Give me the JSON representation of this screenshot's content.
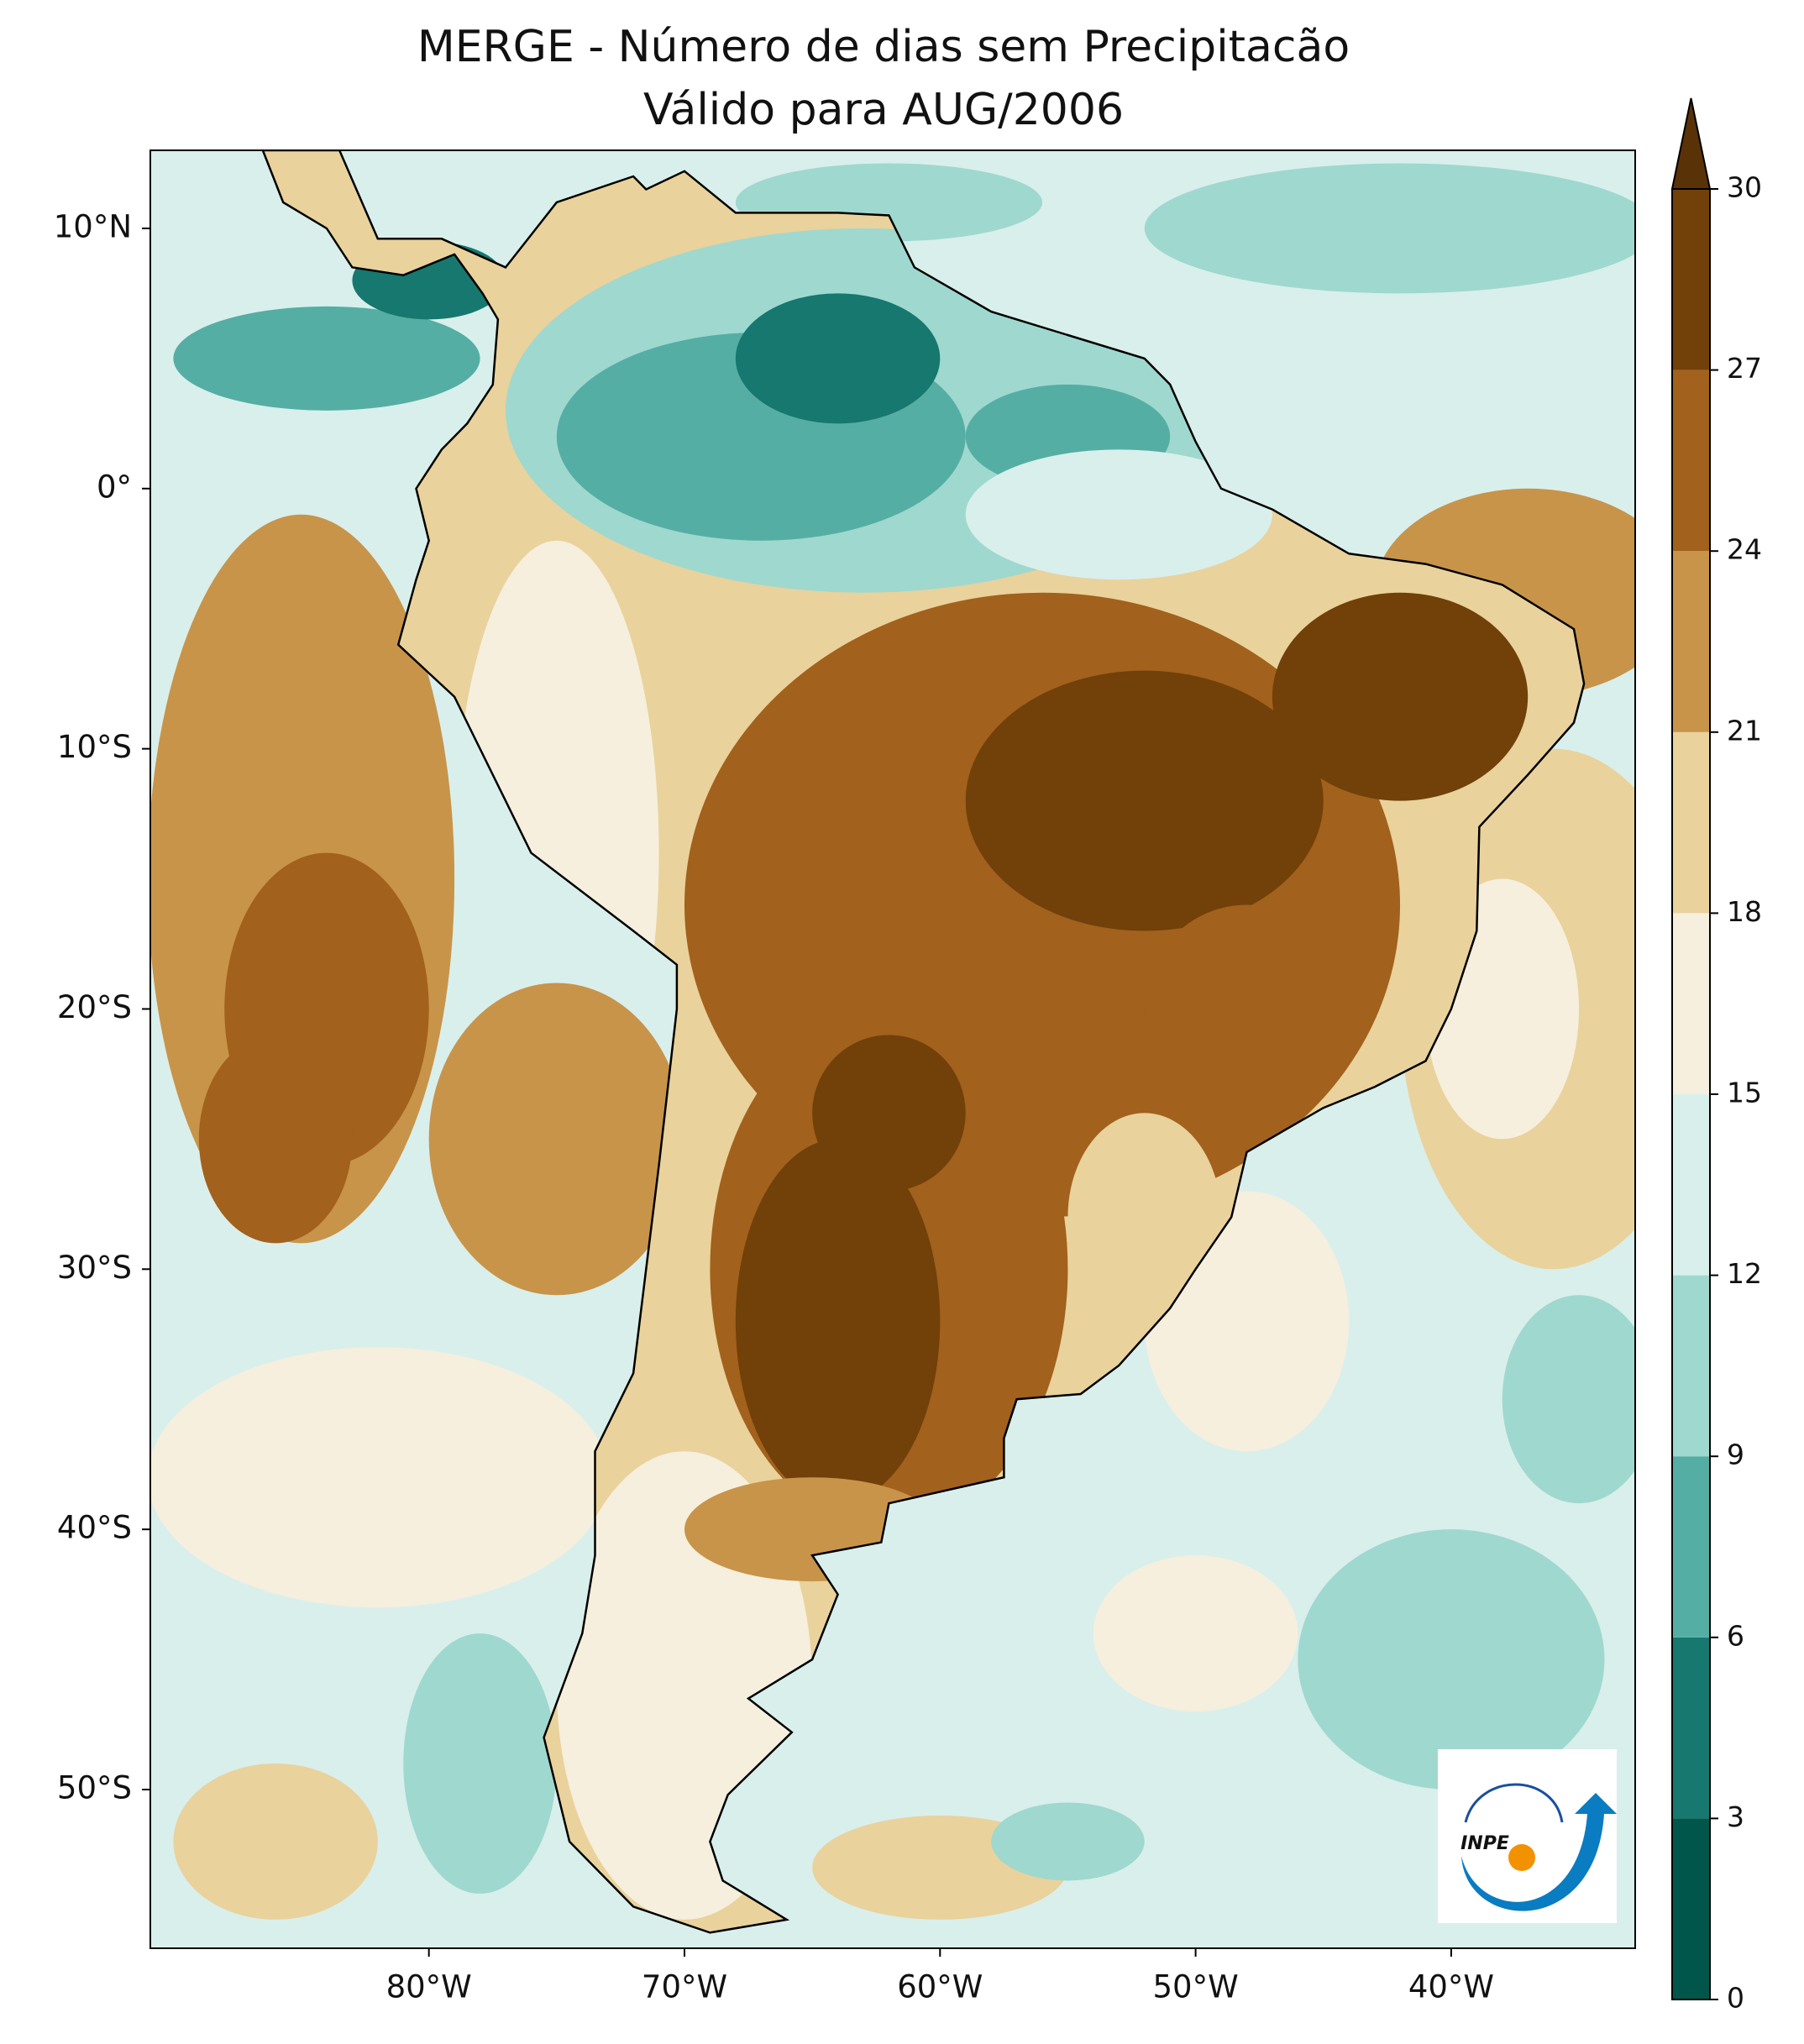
{
  "title": "MERGE - Número de dias sem Precipitacão",
  "subtitle": "Válido para AUG/2006",
  "map": {
    "xlim": [
      -90.9,
      -32.8
    ],
    "ylim": [
      -56.1,
      13
    ],
    "xticks": [
      {
        "value": -80,
        "label": "80°W"
      },
      {
        "value": -70,
        "label": "70°W"
      },
      {
        "value": -60,
        "label": "60°W"
      },
      {
        "value": -50,
        "label": "50°W"
      },
      {
        "value": -40,
        "label": "40°W"
      }
    ],
    "yticks": [
      {
        "value": 10,
        "label": "10°N"
      },
      {
        "value": 0,
        "label": "0°"
      },
      {
        "value": -10,
        "label": "10°S"
      },
      {
        "value": -20,
        "label": "20°S"
      },
      {
        "value": -30,
        "label": "30°S"
      },
      {
        "value": -40,
        "label": "40°S"
      },
      {
        "value": -50,
        "label": "50°S"
      }
    ]
  },
  "colorbar": {
    "levels": [
      0,
      3,
      6,
      9,
      12,
      15,
      18,
      21,
      24,
      27,
      30
    ],
    "colors": [
      "#01564c",
      "#16786f",
      "#55aea4",
      "#9fd8cf",
      "#d9efec",
      "#f6efdd",
      "#e9d29c",
      "#c8944a",
      "#a2611c",
      "#724009"
    ],
    "extend_color": "#5a3208"
  },
  "logo": "INPE"
}
